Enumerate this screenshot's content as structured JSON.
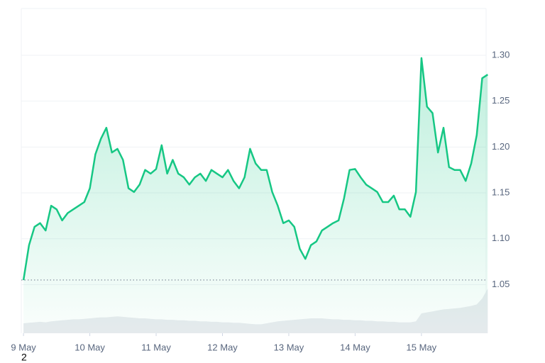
{
  "chart_data": {
    "type": "line",
    "xticks": [
      {
        "value": 0,
        "label": "9 May"
      },
      {
        "value": 12,
        "label": "10 May"
      },
      {
        "value": 24,
        "label": "11 May"
      },
      {
        "value": 36,
        "label": "12 May"
      },
      {
        "value": 48,
        "label": "13 May"
      },
      {
        "value": 60,
        "label": "14 May"
      },
      {
        "value": 72,
        "label": "15 May"
      }
    ],
    "xlim": [
      -0.4,
      83.7
    ],
    "ylim": [
      0.997,
      1.351
    ],
    "yticks": [
      1.05,
      {
        "value": 1.1,
        "label": "1.10"
      },
      1.15,
      {
        "value": 1.2,
        "label": "1.20"
      },
      1.25,
      {
        "value": 1.3,
        "label": "1.30"
      }
    ],
    "y2lim": [
      0,
      100
    ],
    "grid": true,
    "annotation": "2",
    "series": [
      {
        "name": "price",
        "color": "#16c784",
        "values": [
          1.055,
          1.093,
          1.113,
          1.117,
          1.109,
          1.136,
          1.132,
          1.12,
          1.128,
          1.132,
          1.136,
          1.14,
          1.155,
          1.192,
          1.209,
          1.221,
          1.194,
          1.198,
          1.186,
          1.155,
          1.151,
          1.159,
          1.175,
          1.171,
          1.176,
          1.202,
          1.171,
          1.186,
          1.171,
          1.167,
          1.159,
          1.167,
          1.171,
          1.163,
          1.175,
          1.171,
          1.167,
          1.175,
          1.163,
          1.155,
          1.167,
          1.198,
          1.182,
          1.175,
          1.175,
          1.151,
          1.136,
          1.117,
          1.12,
          1.113,
          1.089,
          1.078,
          1.093,
          1.097,
          1.109,
          1.113,
          1.117,
          1.12,
          1.144,
          1.175,
          1.176,
          1.167,
          1.159,
          1.155,
          1.151,
          1.14,
          1.14,
          1.147,
          1.132,
          1.132,
          1.124,
          1.151,
          1.297,
          1.244,
          1.237,
          1.194,
          1.221,
          1.178,
          1.175,
          1.175,
          1.163,
          1.182,
          1.213,
          1.275,
          1.279
        ]
      },
      {
        "name": "volume",
        "color": "#e9ebef",
        "axis": "y2",
        "values": [
          20,
          21,
          22,
          23,
          22,
          24,
          25,
          26,
          27,
          28,
          28,
          29,
          30,
          31,
          32,
          32,
          33,
          34,
          33,
          32,
          31,
          30,
          30,
          29,
          28,
          28,
          27,
          27,
          26,
          26,
          25,
          25,
          24,
          24,
          23,
          23,
          22,
          22,
          21,
          21,
          20,
          19,
          18,
          18,
          20,
          22,
          24,
          25,
          26,
          27,
          28,
          29,
          30,
          30,
          30,
          29,
          28,
          28,
          27,
          27,
          26,
          26,
          25,
          25,
          24,
          24,
          23,
          23,
          22,
          22,
          22,
          24,
          40,
          42,
          44,
          46,
          48,
          49,
          50,
          51,
          53,
          55,
          58,
          70,
          90
        ]
      }
    ]
  }
}
